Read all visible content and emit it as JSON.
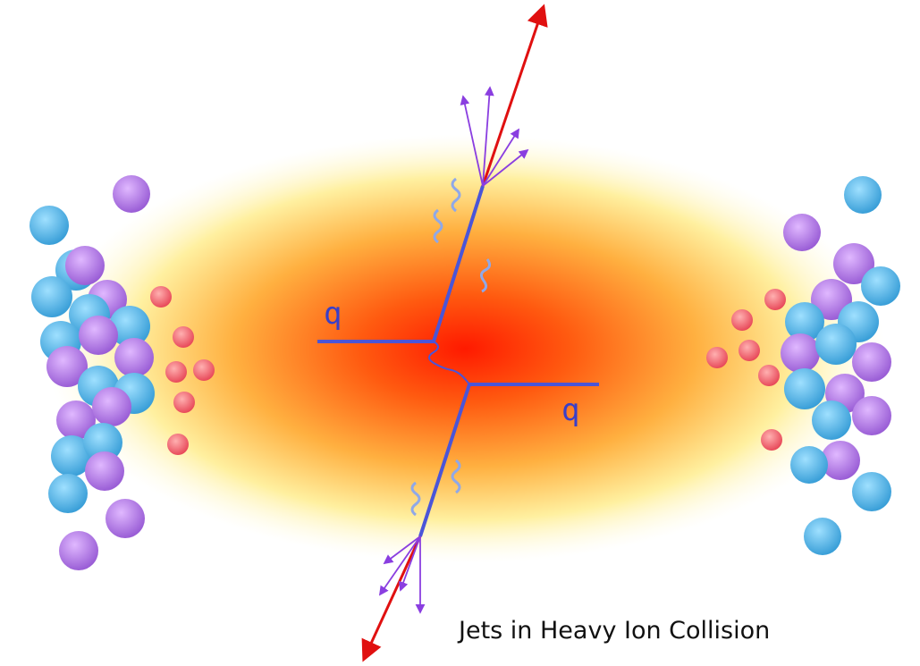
{
  "labels": {
    "upper_quark": "q",
    "lower_quark": "q"
  },
  "caption": "Jets in Heavy Ion Collision"
}
